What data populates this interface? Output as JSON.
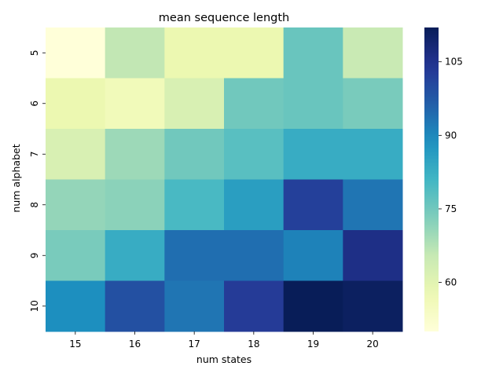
{
  "chart_data": {
    "type": "heatmap",
    "title": "mean sequence length",
    "xlabel": "num states",
    "ylabel": "num alphabet",
    "x_categories": [
      "15",
      "16",
      "17",
      "18",
      "19",
      "20"
    ],
    "y_categories": [
      "5",
      "6",
      "7",
      "8",
      "9",
      "10"
    ],
    "values": [
      [
        50,
        66,
        58,
        58,
        76,
        65
      ],
      [
        58,
        56,
        62,
        75,
        76,
        74
      ],
      [
        62,
        70,
        75,
        78,
        83,
        83
      ],
      [
        71,
        72,
        80,
        86,
        102,
        93
      ],
      [
        74,
        83,
        94,
        94,
        91,
        106
      ],
      [
        89,
        99,
        93,
        103,
        112,
        111
      ]
    ],
    "colorscale": "YlGnBu",
    "colorbar": {
      "min": 50,
      "max": 112,
      "ticks": [
        60,
        75,
        90,
        105
      ]
    },
    "grid": false
  }
}
